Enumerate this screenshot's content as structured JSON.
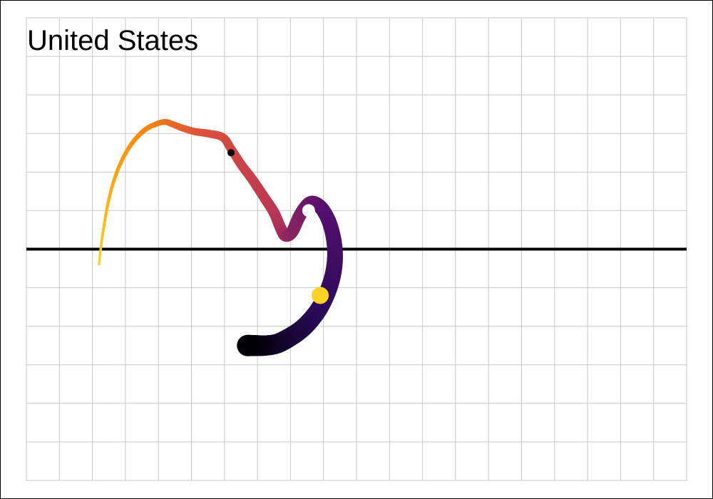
{
  "chart_data": {
    "type": "line",
    "title": "United States",
    "xlabel": "",
    "ylabel": "",
    "xlim": [
      0,
      20
    ],
    "ylim": [
      -6,
      6
    ],
    "grid": true,
    "x_grid_step": 1,
    "y_grid_step": 1,
    "baseline_y": 0,
    "gradient_colors": [
      "#fcd225",
      "#f98c0a",
      "#dd513a",
      "#bc3754",
      "#57106e",
      "#2a0a5a",
      "#000004"
    ],
    "series": [
      {
        "name": "trajectory",
        "x": [
          2.2,
          2.25,
          2.35,
          2.5,
          2.7,
          2.95,
          3.25,
          3.6,
          3.95,
          4.2,
          4.4,
          4.7,
          5.1,
          5.5,
          5.95,
          6.2,
          6.5,
          6.85,
          7.2,
          7.5,
          7.7,
          7.85,
          8.05,
          8.3,
          8.6,
          8.9,
          9.15,
          9.3,
          9.35,
          9.3,
          9.15,
          8.9,
          8.6,
          8.3,
          7.95,
          7.6,
          7.25,
          6.95,
          6.7
        ],
        "y": [
          -0.4,
          0.0,
          0.6,
          1.3,
          1.9,
          2.4,
          2.8,
          3.1,
          3.25,
          3.3,
          3.25,
          3.15,
          3.05,
          3.0,
          2.9,
          2.6,
          2.2,
          1.8,
          1.35,
          0.95,
          0.55,
          0.35,
          0.45,
          0.9,
          1.2,
          1.1,
          0.75,
          0.3,
          -0.15,
          -0.6,
          -1.05,
          -1.5,
          -1.85,
          -2.1,
          -2.3,
          -2.45,
          -2.5,
          -2.5,
          -2.5
        ],
        "width_start": 3,
        "width_end": 30
      }
    ],
    "markers": [
      {
        "name": "black-dot",
        "x": 6.2,
        "y": 2.5,
        "color": "#000000"
      },
      {
        "name": "white-dot",
        "x": 8.55,
        "y": 1.0,
        "color": "#ffffff"
      },
      {
        "name": "yellow-dot",
        "x": 8.9,
        "y": -1.2,
        "color": "#fcd225"
      }
    ]
  }
}
